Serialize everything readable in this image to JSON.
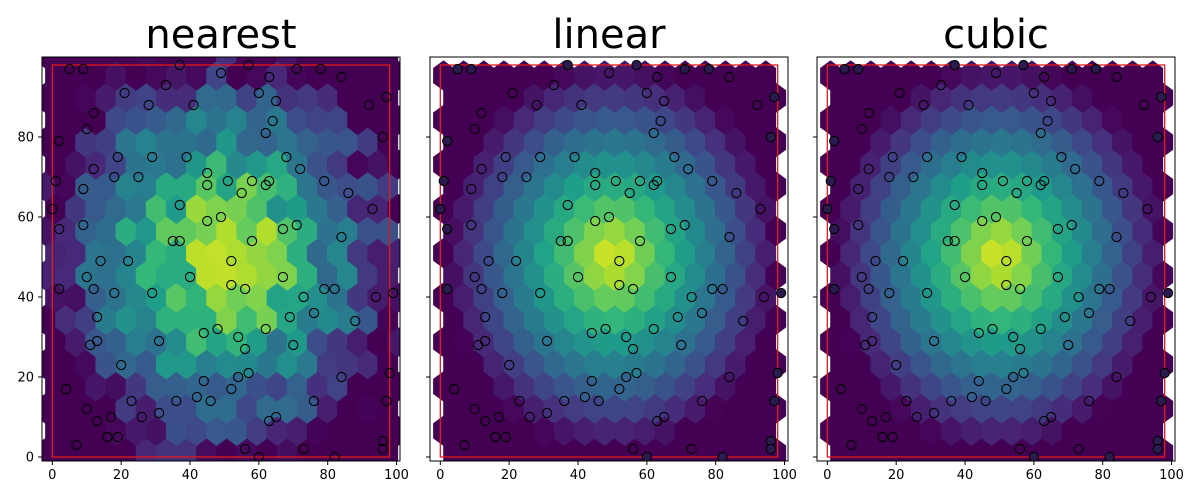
{
  "chart_data": [
    {
      "type": "heatmap",
      "subtype": "hexbin + scatter",
      "title": "nearest",
      "xlim": [
        -3,
        101
      ],
      "ylim": [
        -1,
        100
      ],
      "xticks": [
        0,
        20,
        40,
        60,
        80,
        100
      ],
      "yticks": [
        0,
        20,
        40,
        60,
        80
      ],
      "colormap": "viridis",
      "ytick_labels_visible": true,
      "boundary_rect": [
        0,
        0,
        98,
        98
      ],
      "boundary_color": "#e31a1c",
      "points_drawn": "all",
      "field": "nearest-neighbour interpolation of a radial bump centred at (50, 50)"
    },
    {
      "type": "heatmap",
      "subtype": "hexbin + scatter",
      "title": "linear",
      "xlim": [
        -3,
        101
      ],
      "ylim": [
        -1,
        100
      ],
      "xticks": [
        0,
        20,
        40,
        60,
        80,
        100
      ],
      "yticks": [
        0,
        20,
        40,
        60,
        80
      ],
      "colormap": "viridis",
      "ytick_labels_visible": false,
      "boundary_rect": [
        0,
        0,
        98,
        98
      ],
      "boundary_color": "#e31a1c",
      "points_drawn": "all",
      "field": "linear interpolation, smooth radial bump centred at (50, 50)"
    },
    {
      "type": "heatmap",
      "subtype": "hexbin + scatter",
      "title": "cubic",
      "xlim": [
        -3,
        101
      ],
      "ylim": [
        -1,
        100
      ],
      "xticks": [
        0,
        20,
        40,
        60,
        80,
        100
      ],
      "yticks": [
        0,
        20,
        40,
        60,
        80
      ],
      "colormap": "viridis",
      "ytick_labels_visible": false,
      "boundary_rect": [
        0,
        0,
        98,
        98
      ],
      "boundary_color": "#e31a1c",
      "points_drawn": "all",
      "field": "cubic interpolation, smooth radial bump centred at (50, 50)"
    }
  ],
  "scatter_points": [
    [
      5,
      97
    ],
    [
      9,
      97
    ],
    [
      12,
      86
    ],
    [
      21,
      91
    ],
    [
      28,
      88
    ],
    [
      33,
      93
    ],
    [
      37,
      98
    ],
    [
      41,
      88
    ],
    [
      49,
      96
    ],
    [
      57,
      98
    ],
    [
      60,
      91
    ],
    [
      63,
      95
    ],
    [
      65,
      89
    ],
    [
      71,
      97
    ],
    [
      78,
      97
    ],
    [
      84,
      95
    ],
    [
      92,
      88
    ],
    [
      97,
      90
    ],
    [
      2,
      79
    ],
    [
      10,
      82
    ],
    [
      12,
      72
    ],
    [
      19,
      75
    ],
    [
      29,
      75
    ],
    [
      39,
      75
    ],
    [
      45,
      71
    ],
    [
      51,
      69
    ],
    [
      55,
      66
    ],
    [
      62,
      68
    ],
    [
      62,
      81
    ],
    [
      64,
      84
    ],
    [
      68,
      75
    ],
    [
      72,
      72
    ],
    [
      79,
      69
    ],
    [
      86,
      66
    ],
    [
      96,
      80
    ],
    [
      1,
      69
    ],
    [
      9,
      67
    ],
    [
      18,
      70
    ],
    [
      25,
      70
    ],
    [
      37,
      63
    ],
    [
      45,
      68
    ],
    [
      49,
      60
    ],
    [
      58,
      69
    ],
    [
      63,
      69
    ],
    [
      71,
      58
    ],
    [
      84,
      55
    ],
    [
      93,
      62
    ],
    [
      0,
      62
    ],
    [
      2,
      57
    ],
    [
      9,
      58
    ],
    [
      14,
      49
    ],
    [
      22,
      49
    ],
    [
      35,
      54
    ],
    [
      37,
      54
    ],
    [
      45,
      59
    ],
    [
      52,
      49
    ],
    [
      58,
      54
    ],
    [
      67,
      57
    ],
    [
      79,
      42
    ],
    [
      82,
      42
    ],
    [
      2,
      42
    ],
    [
      10,
      45
    ],
    [
      12,
      42
    ],
    [
      13,
      35
    ],
    [
      18,
      41
    ],
    [
      29,
      41
    ],
    [
      40,
      45
    ],
    [
      52,
      43
    ],
    [
      56,
      42
    ],
    [
      67,
      45
    ],
    [
      73,
      40
    ],
    [
      76,
      36
    ],
    [
      94,
      40
    ],
    [
      99,
      41
    ],
    [
      11,
      28
    ],
    [
      13,
      29
    ],
    [
      20,
      23
    ],
    [
      31,
      29
    ],
    [
      44,
      31
    ],
    [
      48,
      32
    ],
    [
      54,
      30
    ],
    [
      56,
      27
    ],
    [
      62,
      32
    ],
    [
      69,
      35
    ],
    [
      70,
      28
    ],
    [
      88,
      34
    ],
    [
      98,
      21
    ],
    [
      4,
      17
    ],
    [
      10,
      12
    ],
    [
      13,
      9
    ],
    [
      16,
      5
    ],
    [
      17,
      10
    ],
    [
      23,
      14
    ],
    [
      26,
      10
    ],
    [
      31,
      11
    ],
    [
      36,
      14
    ],
    [
      42,
      15
    ],
    [
      44,
      19
    ],
    [
      46,
      14
    ],
    [
      52,
      17
    ],
    [
      54,
      20
    ],
    [
      57,
      21
    ],
    [
      63,
      9
    ],
    [
      65,
      10
    ],
    [
      76,
      14
    ],
    [
      84,
      20
    ],
    [
      7,
      3
    ],
    [
      16,
      5
    ],
    [
      19,
      5
    ],
    [
      56,
      2
    ],
    [
      60,
      0
    ],
    [
      73,
      2
    ],
    [
      82,
      0
    ],
    [
      96,
      4
    ],
    [
      96,
      2
    ],
    [
      97,
      14
    ]
  ],
  "hex_grid": {
    "x_spacing": 5.85,
    "y_spacing": 5.55,
    "x_min": -2,
    "x_max": 102,
    "y_min": 1,
    "y_max": 100
  },
  "colors": {
    "background": "#ffffff",
    "axes_edge": "#000000",
    "boundary": "#e31a1c",
    "point_edge": "#000000",
    "point_fill_outside": "#2b1a4f",
    "viridis": [
      "#440154",
      "#482878",
      "#3e4989",
      "#31688e",
      "#26828e",
      "#1f9e89",
      "#35b779",
      "#6ece58",
      "#b5de2b",
      "#fde725"
    ]
  }
}
